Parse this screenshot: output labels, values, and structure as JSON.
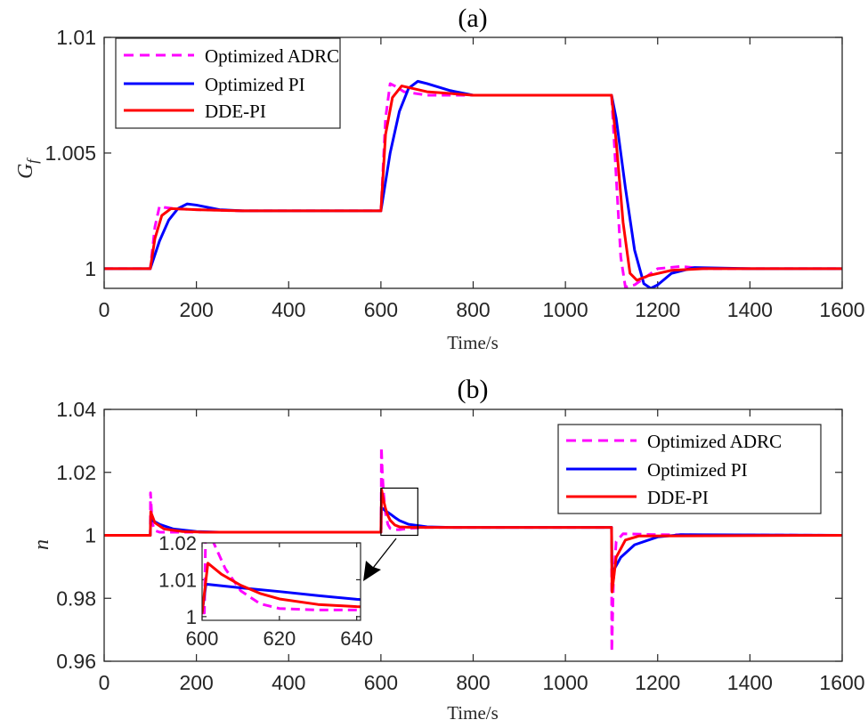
{
  "chart_data": [
    {
      "type": "line",
      "title": "(a)",
      "xlabel": "Time/s",
      "ylabel": "G",
      "ylabel_sub": "f",
      "xlim": [
        0,
        1600
      ],
      "ylim": [
        0.99915,
        1.01
      ],
      "xticks": [
        0,
        200,
        400,
        600,
        800,
        1000,
        1200,
        1400,
        1600
      ],
      "yticks": [
        1,
        1.005,
        1.01
      ],
      "ytick_labels": [
        "1",
        "1.005",
        "1.01"
      ],
      "legend_position": "top-left",
      "grid": false,
      "series": [
        {
          "name": "Optimized ADRC",
          "color": "#FF00FF",
          "dash": true,
          "points": [
            [
              0,
              1
            ],
            [
              100,
              1
            ],
            [
              110,
              1.0018
            ],
            [
              120,
              1.0027
            ],
            [
              130,
              1.00265
            ],
            [
              150,
              1.0026
            ],
            [
              200,
              1.00255
            ],
            [
              300,
              1.0025
            ],
            [
              600,
              1.0025
            ],
            [
              610,
              1.0065
            ],
            [
              620,
              1.008
            ],
            [
              630,
              1.0079
            ],
            [
              650,
              1.00765
            ],
            [
              700,
              1.0075
            ],
            [
              1100,
              1.0075
            ],
            [
              1110,
              1.004
            ],
            [
              1120,
              1.0005
            ],
            [
              1130,
              0.9992
            ],
            [
              1150,
              0.9993
            ],
            [
              1200,
              1.0
            ],
            [
              1250,
              1.0001
            ],
            [
              1300,
              1.0
            ],
            [
              1600,
              1.0
            ]
          ]
        },
        {
          "name": "Optimized PI",
          "color": "#0000FF",
          "dash": false,
          "points": [
            [
              0,
              1
            ],
            [
              100,
              1
            ],
            [
              120,
              1.0012
            ],
            [
              140,
              1.0021
            ],
            [
              160,
              1.0026
            ],
            [
              180,
              1.0028
            ],
            [
              200,
              1.00275
            ],
            [
              250,
              1.00255
            ],
            [
              300,
              1.0025
            ],
            [
              600,
              1.0025
            ],
            [
              620,
              1.005
            ],
            [
              640,
              1.0068
            ],
            [
              660,
              1.0078
            ],
            [
              680,
              1.0081
            ],
            [
              700,
              1.008
            ],
            [
              750,
              1.0077
            ],
            [
              800,
              1.0075
            ],
            [
              1100,
              1.0075
            ],
            [
              1110,
              1.0065
            ],
            [
              1130,
              1.0035
            ],
            [
              1150,
              1.0008
            ],
            [
              1170,
              0.99935
            ],
            [
              1185,
              0.99915
            ],
            [
              1200,
              0.9993
            ],
            [
              1230,
              0.9998
            ],
            [
              1280,
              1.00005
            ],
            [
              1400,
              1.0
            ],
            [
              1600,
              1.0
            ]
          ]
        },
        {
          "name": "DDE-PI",
          "color": "#FF0000",
          "dash": false,
          "points": [
            [
              0,
              1
            ],
            [
              100,
              1
            ],
            [
              110,
              1.0013
            ],
            [
              125,
              1.0023
            ],
            [
              145,
              1.0026
            ],
            [
              200,
              1.00255
            ],
            [
              300,
              1.0025
            ],
            [
              600,
              1.0025
            ],
            [
              610,
              1.0058
            ],
            [
              625,
              1.0074
            ],
            [
              645,
              1.0079
            ],
            [
              700,
              1.00765
            ],
            [
              800,
              1.0075
            ],
            [
              1100,
              1.0075
            ],
            [
              1110,
              1.0055
            ],
            [
              1125,
              1.002
            ],
            [
              1140,
              0.9998
            ],
            [
              1155,
              0.9995
            ],
            [
              1180,
              0.9997
            ],
            [
              1230,
              0.99993
            ],
            [
              1300,
              1.0
            ],
            [
              1600,
              1.0
            ]
          ]
        }
      ]
    },
    {
      "type": "line",
      "title": "(b)",
      "xlabel": "Time/s",
      "ylabel": "n",
      "xlim": [
        0,
        1600
      ],
      "ylim": [
        0.96,
        1.04
      ],
      "xticks": [
        0,
        200,
        400,
        600,
        800,
        1000,
        1200,
        1400,
        1600
      ],
      "yticks": [
        0.96,
        0.98,
        1,
        1.02,
        1.04
      ],
      "ytick_labels": [
        "0.96",
        "0.98",
        "1",
        "1.02",
        "1.04"
      ],
      "legend_position": "top-right",
      "grid": false,
      "zoom_box": {
        "xlim": [
          600,
          680
        ],
        "ylim": [
          1.0,
          1.015
        ]
      },
      "inset": {
        "xlim": [
          600,
          641
        ],
        "ylim": [
          0.999,
          1.02
        ],
        "xticks": [
          600,
          620,
          640
        ],
        "yticks": [
          1,
          1.01,
          1.02
        ],
        "ytick_labels": [
          "1",
          "1.01",
          "1.02"
        ]
      },
      "series": [
        {
          "name": "Optimized ADRC",
          "color": "#FF00FF",
          "dash": true,
          "points": [
            [
              0,
              1
            ],
            [
              100,
              1
            ],
            [
              100.5,
              1.0135
            ],
            [
              104,
              1.004
            ],
            [
              110,
              1.0015
            ],
            [
              120,
              1.001
            ],
            [
              600,
              1.001
            ],
            [
              600.6,
              1.001
            ],
            [
              601,
              1.028
            ],
            [
              603,
              1.02
            ],
            [
              606,
              1.013
            ],
            [
              610,
              1.007
            ],
            [
              615,
              1.0035
            ],
            [
              620,
              1.0022
            ],
            [
              630,
              1.0018
            ],
            [
              640,
              1.0018
            ],
            [
              660,
              1.0022
            ],
            [
              700,
              1.0025
            ],
            [
              1100,
              1.0025
            ],
            [
              1100.5,
              0.963
            ],
            [
              1104,
              0.985
            ],
            [
              1110,
              0.998
            ],
            [
              1125,
              1.0005
            ],
            [
              1200,
              1.0002
            ],
            [
              1600,
              1.0
            ]
          ]
        },
        {
          "name": "Optimized PI",
          "color": "#0000FF",
          "dash": false,
          "points": [
            [
              0,
              1
            ],
            [
              100,
              1
            ],
            [
              101,
              1.005
            ],
            [
              120,
              1.0035
            ],
            [
              150,
              1.002
            ],
            [
              200,
              1.0012
            ],
            [
              250,
              1.001
            ],
            [
              600,
              1.001
            ],
            [
              601,
              1.0088
            ],
            [
              610,
              1.0078
            ],
            [
              620,
              1.0068
            ],
            [
              630,
              1.0057
            ],
            [
              640,
              1.0047
            ],
            [
              660,
              1.0035
            ],
            [
              700,
              1.0027
            ],
            [
              750,
              1.0025
            ],
            [
              1100,
              1.0025
            ],
            [
              1101,
              0.988
            ],
            [
              1120,
              0.993
            ],
            [
              1150,
              0.997
            ],
            [
              1200,
              0.9995
            ],
            [
              1250,
              1.0002
            ],
            [
              1600,
              1.0
            ]
          ]
        },
        {
          "name": "DDE-PI",
          "color": "#FF0000",
          "dash": false,
          "points": [
            [
              0,
              1
            ],
            [
              100,
              1
            ],
            [
              101,
              1.0075
            ],
            [
              110,
              1.004
            ],
            [
              130,
              1.002
            ],
            [
              170,
              1.0012
            ],
            [
              220,
              1.001
            ],
            [
              600,
              1.001
            ],
            [
              601.5,
              1.0145
            ],
            [
              605,
              1.0115
            ],
            [
              610,
              1.0085
            ],
            [
              615,
              1.0063
            ],
            [
              620,
              1.0048
            ],
            [
              630,
              1.0033
            ],
            [
              640,
              1.0027
            ],
            [
              670,
              1.0025
            ],
            [
              1100,
              1.0025
            ],
            [
              1101,
              0.982
            ],
            [
              1110,
              0.993
            ],
            [
              1130,
              0.9985
            ],
            [
              1160,
              0.9998
            ],
            [
              1600,
              1.0
            ]
          ]
        }
      ]
    }
  ]
}
